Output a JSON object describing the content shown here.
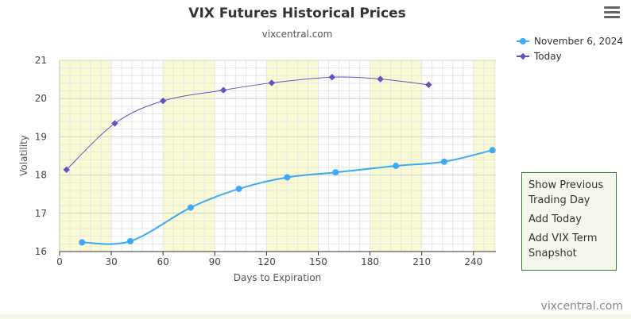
{
  "colors": {
    "band": "#fafad2",
    "grid": "#e6e6e6",
    "series_nov": "#3fa9f5",
    "series_today": "#6a4fc2",
    "snapshot_border": "#2e7d32",
    "snapshot_bg": "#f6f8ee"
  },
  "menu": {
    "icon": "hamburger-menu-icon"
  },
  "snapshot_menu": {
    "items": [
      "Show Previous",
      "Trading Day",
      "Add Today",
      "Add VIX Term",
      "Snapshot"
    ]
  },
  "credit": "vixcentral.com",
  "chart_data": {
    "type": "line",
    "title": "VIX Futures Historical Prices",
    "subtitle": "vixcentral.com",
    "xlabel": "Days to Expiration",
    "ylabel": "Volatility",
    "xlim": [
      0,
      253
    ],
    "ylim": [
      16,
      21
    ],
    "xticks": [
      0,
      30,
      60,
      90,
      120,
      150,
      180,
      210,
      240
    ],
    "yticks": [
      16,
      17,
      18,
      19,
      20,
      21
    ],
    "bands": [
      [
        0,
        30
      ],
      [
        60,
        90
      ],
      [
        120,
        150
      ],
      [
        180,
        210
      ],
      [
        240,
        253
      ]
    ],
    "legend_position": "top-right",
    "series": [
      {
        "name": "November 6, 2024",
        "color": "#3fa9f5",
        "marker": "circle",
        "x": [
          13,
          41,
          76,
          104,
          132,
          160,
          195,
          223,
          251
        ],
        "y": [
          16.24,
          16.27,
          17.15,
          17.64,
          17.94,
          18.07,
          18.24,
          18.35,
          18.65
        ]
      },
      {
        "name": "Today",
        "color": "#6a4fc2",
        "marker": "diamond",
        "x": [
          4,
          32,
          60,
          95,
          123,
          158,
          186,
          214
        ],
        "y": [
          18.14,
          19.35,
          19.94,
          20.22,
          20.41,
          20.56,
          20.51,
          20.36
        ]
      }
    ]
  }
}
